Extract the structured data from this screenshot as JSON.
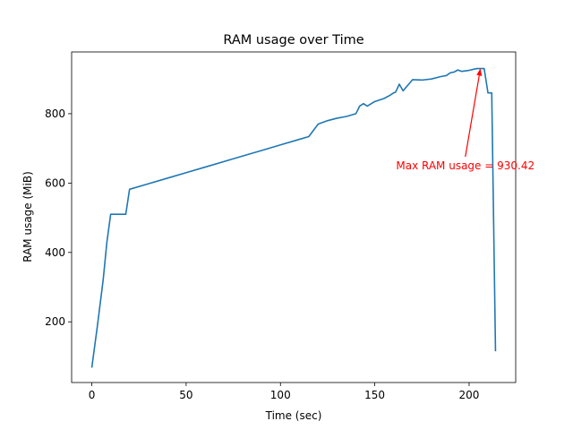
{
  "chart_data": {
    "type": "line",
    "title": "RAM usage over Time",
    "xlabel": "Time (sec)",
    "ylabel": "RAM usage (MiB)",
    "xlim": [
      -10.7,
      224.7
    ],
    "ylim": [
      25,
      978
    ],
    "xticks": [
      0,
      50,
      100,
      150,
      200
    ],
    "yticks": [
      200,
      400,
      600,
      800
    ],
    "grid": false,
    "series": [
      {
        "color": "#1f77b4",
        "x": [
          0,
          3,
          6,
          8,
          10,
          12,
          15,
          18,
          20,
          30,
          40,
          50,
          60,
          70,
          80,
          90,
          100,
          110,
          115,
          120,
          125,
          130,
          135,
          140,
          142,
          144,
          146,
          150,
          155,
          158,
          160,
          161,
          163,
          165,
          170,
          175,
          180,
          185,
          188,
          190,
          192,
          194,
          196,
          200,
          204,
          206,
          208,
          210,
          212,
          214
        ],
        "y": [
          68,
          190,
          320,
          430,
          510,
          510,
          510,
          510,
          582,
          598,
          614,
          630,
          646,
          662,
          678,
          694,
          710,
          726,
          734,
          770,
          780,
          787,
          792,
          800,
          822,
          829,
          822,
          835,
          844,
          853,
          860,
          862,
          885,
          866,
          898,
          897,
          900,
          907,
          910,
          918,
          920,
          926,
          922,
          925,
          930,
          930,
          930,
          860,
          860,
          115
        ]
      }
    ],
    "annotation": {
      "text": "Max RAM usage = 930.42",
      "color": "#ff0000",
      "point": [
        206,
        930.42
      ],
      "text_anchor": [
        198,
        650
      ]
    }
  }
}
